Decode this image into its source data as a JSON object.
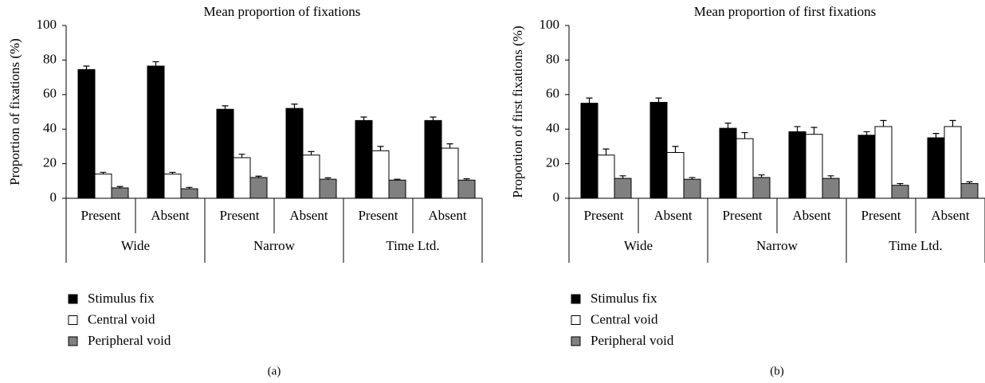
{
  "chart_data": [
    {
      "type": "bar",
      "title": "Mean proportion of fixations",
      "y_label": "Proportion of fixations (%)",
      "panel_label": "(a)",
      "groups": [
        {
          "name": "Wide",
          "categories": [
            "Present",
            "Absent"
          ]
        },
        {
          "name": "Narrow",
          "categories": [
            "Present",
            "Absent"
          ]
        },
        {
          "name": "Time Ltd.",
          "categories": [
            "Present",
            "Absent"
          ]
        }
      ],
      "series": [
        {
          "name": "Stimulus fix",
          "color": "#000000",
          "values": [
            74.5,
            76.5,
            51.5,
            52,
            45,
            45
          ],
          "errors": [
            2,
            2.5,
            2,
            2.5,
            2,
            2
          ]
        },
        {
          "name": "Central void",
          "color": "#ffffff",
          "values": [
            14,
            14,
            23.5,
            25,
            27.5,
            29
          ],
          "errors": [
            1,
            1,
            2,
            2,
            2.5,
            2.5
          ]
        },
        {
          "name": "Peripheral void",
          "color": "#808080",
          "values": [
            6,
            5.5,
            12,
            11,
            10.5,
            10.5
          ],
          "errors": [
            0.8,
            0.8,
            0.8,
            0.8,
            0.5,
            0.8
          ]
        }
      ],
      "ylim": [
        0,
        100
      ],
      "yticks": [
        0,
        20,
        40,
        60,
        80,
        100
      ]
    },
    {
      "type": "bar",
      "title": "Mean proportion of first fixations",
      "y_label": "Proportion of first fixations (%)",
      "panel_label": "(b)",
      "groups": [
        {
          "name": "Wide",
          "categories": [
            "Present",
            "Absent"
          ]
        },
        {
          "name": "Narrow",
          "categories": [
            "Present",
            "Absent"
          ]
        },
        {
          "name": "Time Ltd.",
          "categories": [
            "Present",
            "Absent"
          ]
        }
      ],
      "series": [
        {
          "name": "Stimulus fix",
          "color": "#000000",
          "values": [
            55,
            55.5,
            40.5,
            38.5,
            36.5,
            35
          ],
          "errors": [
            3,
            2.5,
            3,
            3,
            2,
            2.5
          ]
        },
        {
          "name": "Central void",
          "color": "#ffffff",
          "values": [
            25,
            26.5,
            34.5,
            37,
            41.5,
            41.5
          ],
          "errors": [
            3.5,
            3.5,
            3.5,
            4,
            3.5,
            3.5
          ]
        },
        {
          "name": "Peripheral void",
          "color": "#808080",
          "values": [
            11.5,
            11,
            12,
            11.5,
            7.5,
            8.5
          ],
          "errors": [
            1.5,
            1,
            1.5,
            1.5,
            1,
            1
          ]
        }
      ],
      "ylim": [
        0,
        100
      ],
      "yticks": [
        0,
        20,
        40,
        60,
        80,
        100
      ]
    }
  ]
}
